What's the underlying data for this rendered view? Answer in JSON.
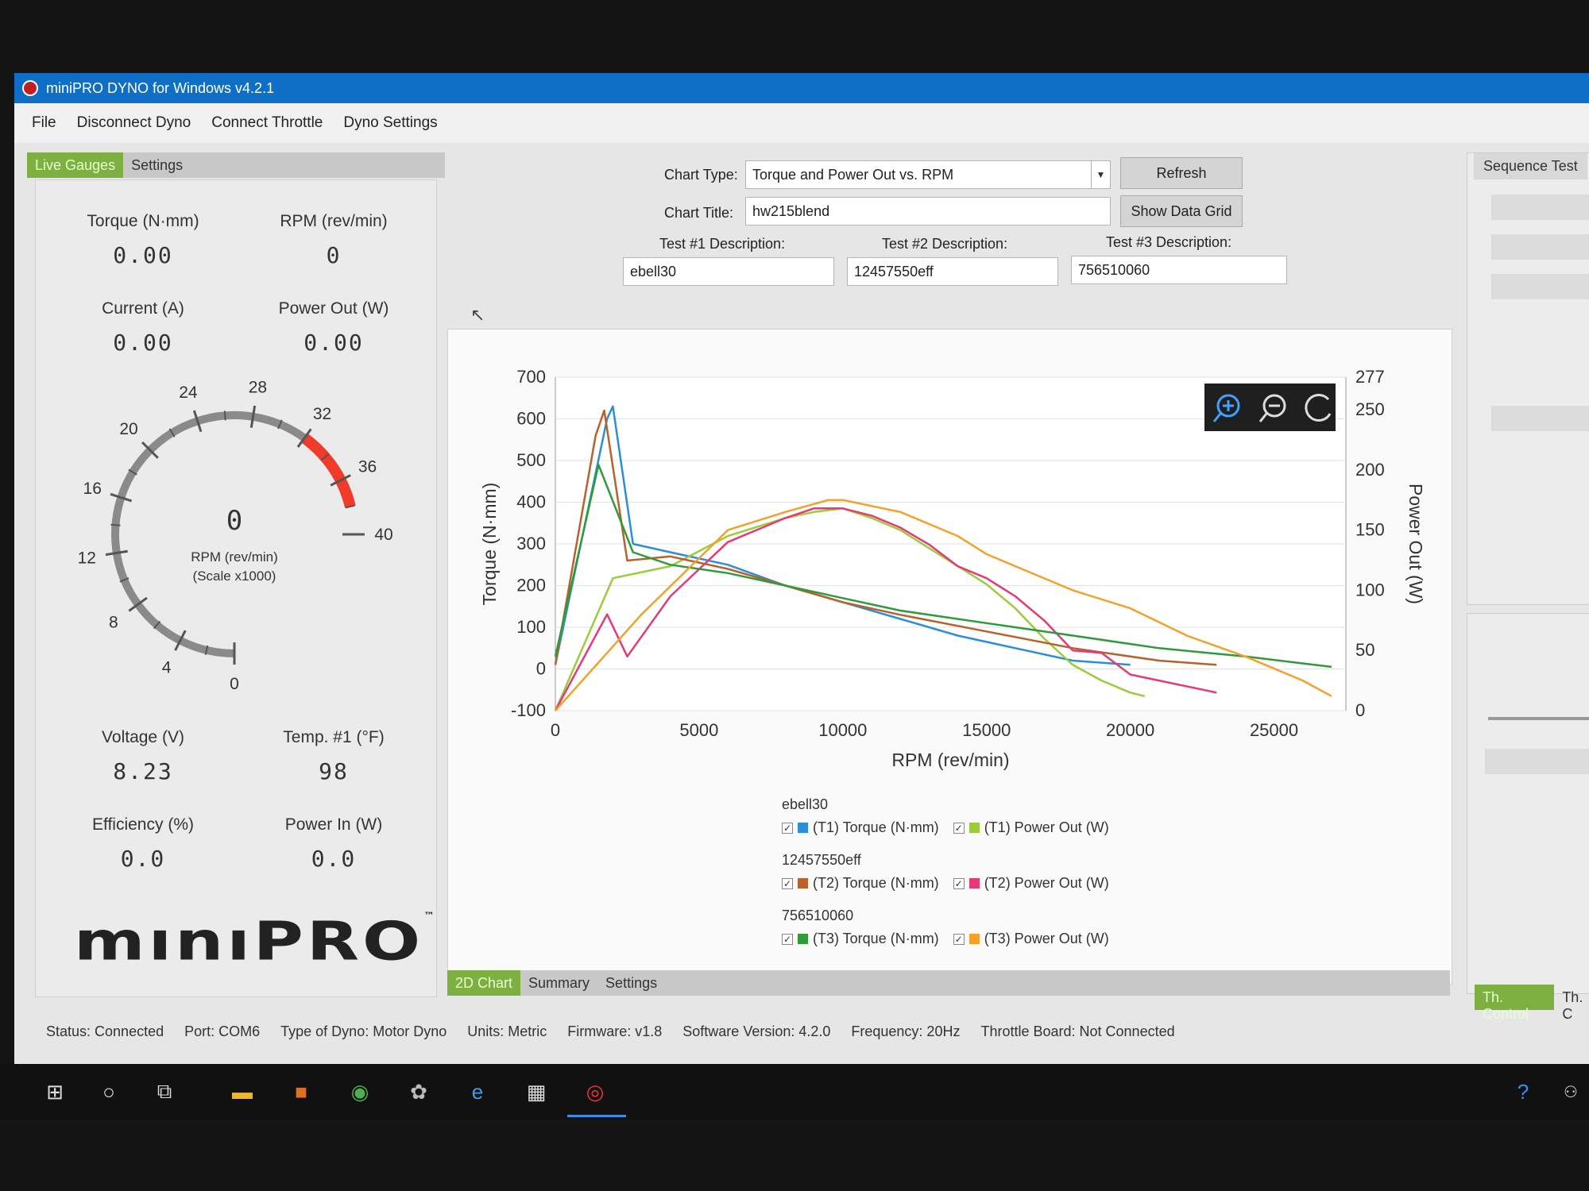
{
  "window": {
    "title": "miniPRO DYNO for Windows v4.2.1"
  },
  "menu": [
    "File",
    "Disconnect Dyno",
    "Connect Throttle",
    "Dyno Settings"
  ],
  "left_tabs": [
    "Live Gauges",
    "Settings"
  ],
  "readouts": {
    "torque": {
      "label": "Torque  (N·mm)",
      "value": "0.00"
    },
    "rpm": {
      "label": "RPM  (rev/min)",
      "value": "0"
    },
    "current": {
      "label": "Current  (A)",
      "value": "0.00"
    },
    "power_out": {
      "label": "Power Out  (W)",
      "value": "0.00"
    },
    "voltage": {
      "label": "Voltage  (V)",
      "value": "8.23"
    },
    "temp": {
      "label": "Temp. #1  (°F)",
      "value": "98"
    },
    "efficiency": {
      "label": "Efficiency  (%)",
      "value": "0.0"
    },
    "power_in": {
      "label": "Power In  (W)",
      "value": "0.0"
    }
  },
  "gauge": {
    "value": "0",
    "unit": "RPM  (rev/min)",
    "scale": "(Scale x1000)",
    "ticks": [
      "0",
      "4",
      "8",
      "12",
      "16",
      "20",
      "24",
      "28",
      "32",
      "36",
      "40"
    ],
    "redline_color": "#f03a2a"
  },
  "logo": {
    "text": "mınıPRO",
    "tm": "™"
  },
  "controls": {
    "chart_type_label": "Chart Type:",
    "chart_type_value": "Torque and Power Out vs. RPM",
    "chart_title_label": "Chart Title:",
    "chart_title_value": "hw215blend",
    "refresh_label": "Refresh",
    "show_grid_label": "Show Data Grid",
    "test1_label": "Test #1 Description:",
    "test1_value": "ebell30",
    "test2_label": "Test #2 Description:",
    "test2_value": "12457550eff",
    "test3_label": "Test #3 Description:",
    "test3_value": "756510060"
  },
  "chart_tabs": [
    "2D Chart",
    "Summary",
    "Settings"
  ],
  "right_panel": {
    "tab": "Sequence Test",
    "bottom_tabs": [
      "Th. Control",
      "Th. C"
    ]
  },
  "status": {
    "status": "Status: Connected",
    "port": "Port: COM6",
    "dyno_type": "Type of Dyno: Motor Dyno",
    "units": "Units: Metric",
    "firmware": "Firmware: v1.8",
    "software": "Software Version: 4.2.0",
    "frequency": "Frequency: 20Hz",
    "throttle": "Throttle Board: Not Connected"
  },
  "chart_data": {
    "type": "line",
    "xlabel": "RPM (rev/min)",
    "ylabel": "Torque (N·mm)",
    "y2label": "Power Out (W)",
    "xlim": [
      0,
      27500
    ],
    "ylim": [
      -100,
      700
    ],
    "y2lim": [
      0,
      277
    ],
    "x_ticks": [
      0,
      5000,
      10000,
      15000,
      20000,
      25000
    ],
    "y_ticks": [
      -100,
      0,
      100,
      200,
      300,
      400,
      500,
      600,
      700
    ],
    "y2_ticks": [
      0,
      50,
      100,
      150,
      200,
      250,
      277
    ],
    "grid": true,
    "legend_groups": [
      {
        "name": "ebell30",
        "entries": [
          {
            "label": "(T1) Torque (N·mm)",
            "color": "#2b8fd8"
          },
          {
            "label": "(T1) Power Out (W)",
            "color": "#9ccc3c"
          }
        ]
      },
      {
        "name": "12457550eff",
        "entries": [
          {
            "label": "(T2) Torque (N·mm)",
            "color": "#b8612c"
          },
          {
            "label": "(T2) Power Out (W)",
            "color": "#e63a78"
          }
        ]
      },
      {
        "name": "756510060",
        "entries": [
          {
            "label": "(T3) Torque (N·mm)",
            "color": "#2f9a3a"
          },
          {
            "label": "(T3) Power Out (W)",
            "color": "#f5a02a"
          }
        ]
      }
    ],
    "series": [
      {
        "name": "(T1) Torque (N·mm)",
        "axis": "left",
        "color": "#2b8fd8",
        "x": [
          0,
          1800,
          2000,
          2700,
          4000,
          6000,
          8000,
          10000,
          12000,
          14000,
          16000,
          18000,
          20000
        ],
        "y": [
          10,
          600,
          630,
          300,
          280,
          250,
          200,
          160,
          120,
          80,
          50,
          20,
          10
        ]
      },
      {
        "name": "(T1) Power Out (W)",
        "axis": "right",
        "color": "#9ccc3c",
        "x": [
          0,
          2000,
          4000,
          6000,
          8000,
          9000,
          10000,
          11000,
          12000,
          13000,
          14000,
          15000,
          16000,
          17000,
          18000,
          19000,
          20000,
          20500
        ],
        "y": [
          0,
          110,
          120,
          145,
          160,
          165,
          168,
          160,
          150,
          135,
          120,
          105,
          85,
          60,
          38,
          25,
          15,
          12
        ]
      },
      {
        "name": "(T2) Torque (N·mm)",
        "axis": "left",
        "color": "#b8612c",
        "x": [
          0,
          1400,
          1700,
          2500,
          4000,
          6000,
          8000,
          10000,
          12000,
          15000,
          18000,
          21000,
          23000
        ],
        "y": [
          10,
          560,
          620,
          260,
          270,
          240,
          200,
          160,
          130,
          90,
          50,
          20,
          10
        ]
      },
      {
        "name": "(T2) Power Out (W)",
        "axis": "right",
        "color": "#e63a78",
        "x": [
          0,
          1800,
          2500,
          4000,
          6000,
          8000,
          9000,
          10000,
          11000,
          12000,
          13000,
          14000,
          15000,
          16000,
          17000,
          18000,
          19000,
          20000,
          21000,
          22000,
          23000
        ],
        "y": [
          0,
          80,
          45,
          95,
          140,
          160,
          168,
          168,
          162,
          152,
          138,
          120,
          110,
          95,
          75,
          50,
          48,
          30,
          25,
          20,
          15
        ]
      },
      {
        "name": "(T3) Torque (N·mm)",
        "axis": "left",
        "color": "#2f9a3a",
        "x": [
          0,
          1500,
          2700,
          4000,
          6000,
          8000,
          10000,
          12000,
          15000,
          18000,
          21000,
          24000,
          27000
        ],
        "y": [
          30,
          490,
          280,
          250,
          230,
          200,
          170,
          140,
          110,
          80,
          50,
          30,
          5
        ]
      },
      {
        "name": "(T3) Power Out (W)",
        "axis": "right",
        "color": "#f5a02a",
        "x": [
          0,
          3000,
          6000,
          8000,
          9500,
          10000,
          12000,
          14000,
          15000,
          16000,
          18000,
          20000,
          22000,
          24000,
          26000,
          27000
        ],
        "y": [
          0,
          80,
          150,
          165,
          175,
          175,
          165,
          145,
          130,
          120,
          100,
          85,
          62,
          45,
          25,
          12
        ]
      }
    ]
  }
}
